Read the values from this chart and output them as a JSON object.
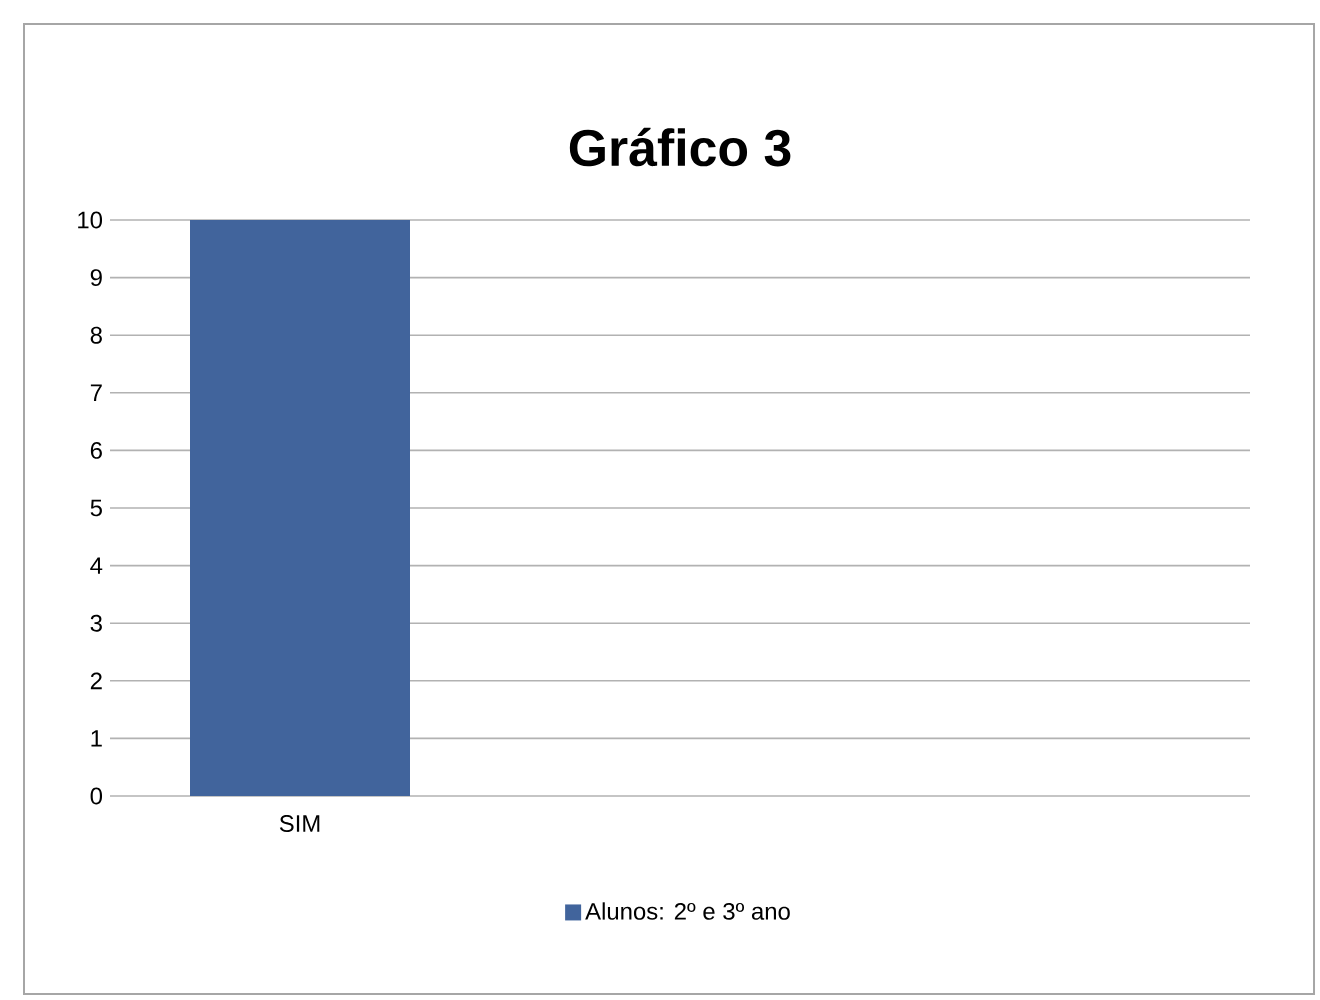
{
  "chart_data": {
    "type": "bar",
    "title": "Gráfico 3",
    "categories": [
      "SIM",
      null,
      null
    ],
    "series": [
      {
        "name": "Alunos: 2º e 3º ano",
        "color": "#41649c",
        "values": [
          10,
          null,
          null
        ]
      }
    ],
    "ylim": [
      0,
      10
    ],
    "yticks": [
      0,
      1,
      2,
      3,
      4,
      5,
      6,
      7,
      8,
      9,
      10
    ],
    "grid": "y",
    "legend": "bottom"
  }
}
